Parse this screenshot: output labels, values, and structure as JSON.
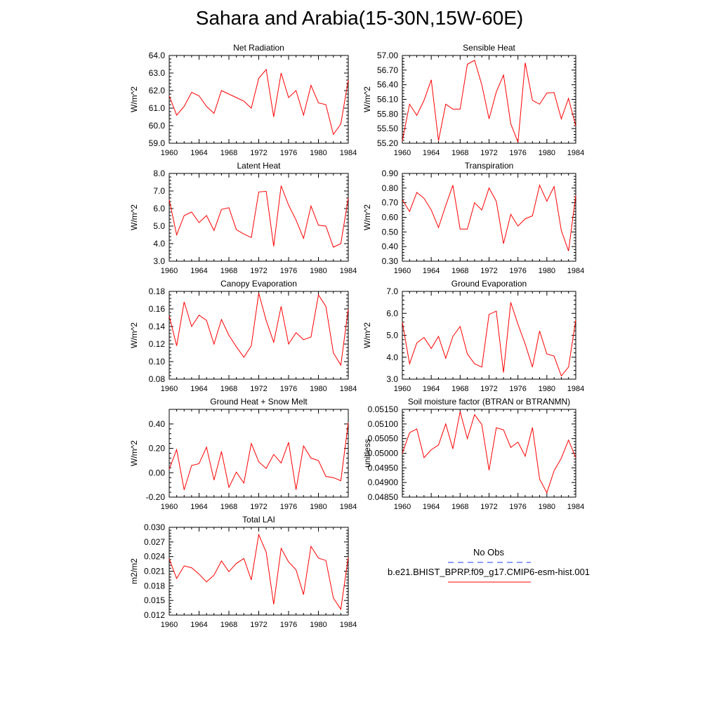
{
  "title": "Sahara and Arabia(15-30N,15W-60E)",
  "colors": {
    "model_line": "#ff0000",
    "obs_line": "#1e3cff",
    "axis": "#000000"
  },
  "legend": {
    "obs_label": "No Obs",
    "model_label": "b.e21.BHIST_BPRP.f09_g17.CMIP6-esm-hist.001"
  },
  "chart_data": [
    {
      "type": "line",
      "title": "Net Radiation",
      "ylabel": "W/m^2",
      "xticks": [
        "1960",
        "1964",
        "1968",
        "1972",
        "1976",
        "1980",
        "1984"
      ],
      "ylim": [
        59.0,
        64.0
      ],
      "yticks": [
        "59.0",
        "60.0",
        "61.0",
        "62.0",
        "63.0",
        "64.0"
      ],
      "x": [
        1960,
        1961,
        1962,
        1963,
        1964,
        1965,
        1966,
        1967,
        1968,
        1969,
        1970,
        1971,
        1972,
        1973,
        1974,
        1975,
        1976,
        1977,
        1978,
        1979,
        1980,
        1981,
        1982,
        1983,
        1984
      ],
      "series": [
        {
          "values": [
            61.7,
            60.6,
            61.1,
            61.9,
            61.7,
            61.1,
            60.7,
            62.0,
            61.8,
            61.6,
            61.4,
            61.0,
            62.7,
            63.2,
            60.5,
            63.0,
            61.6,
            62.0,
            60.6,
            62.3,
            61.3,
            61.2,
            59.5,
            60.1,
            62.6
          ]
        }
      ]
    },
    {
      "type": "line",
      "title": "Sensible Heat",
      "ylabel": "W/m^2",
      "xticks": [
        "1960",
        "1964",
        "1968",
        "1972",
        "1976",
        "1980",
        "1984"
      ],
      "ylim": [
        55.2,
        57.0
      ],
      "yticks": [
        "55.20",
        "55.50",
        "55.80",
        "56.10",
        "56.40",
        "56.70",
        "57.00"
      ],
      "x": [
        1960,
        1961,
        1962,
        1963,
        1964,
        1965,
        1966,
        1967,
        1968,
        1969,
        1970,
        1971,
        1972,
        1973,
        1974,
        1975,
        1976,
        1977,
        1978,
        1979,
        1980,
        1981,
        1982,
        1983,
        1984
      ],
      "series": [
        {
          "values": [
            55.25,
            56.0,
            55.77,
            56.08,
            56.5,
            55.25,
            56.0,
            55.9,
            55.9,
            56.82,
            56.9,
            56.4,
            55.7,
            56.25,
            56.6,
            55.6,
            55.22,
            56.85,
            56.08,
            56.0,
            56.23,
            56.24,
            55.7,
            56.12,
            55.55
          ]
        }
      ]
    },
    {
      "type": "line",
      "title": "Latent Heat",
      "ylabel": "W/m^2",
      "xticks": [
        "1960",
        "1964",
        "1968",
        "1972",
        "1976",
        "1980",
        "1984"
      ],
      "ylim": [
        3.0,
        8.0
      ],
      "yticks": [
        "3.0",
        "4.0",
        "5.0",
        "6.0",
        "7.0",
        "8.0"
      ],
      "x": [
        1960,
        1961,
        1962,
        1963,
        1964,
        1965,
        1966,
        1967,
        1968,
        1969,
        1970,
        1971,
        1972,
        1973,
        1974,
        1975,
        1976,
        1977,
        1978,
        1979,
        1980,
        1981,
        1982,
        1983,
        1984
      ],
      "series": [
        {
          "values": [
            6.5,
            4.5,
            5.6,
            5.8,
            5.2,
            5.6,
            4.75,
            5.95,
            6.05,
            4.8,
            4.55,
            4.35,
            6.95,
            6.98,
            3.85,
            7.3,
            6.2,
            5.35,
            4.3,
            6.15,
            5.05,
            5.0,
            3.8,
            4.0,
            6.6
          ]
        }
      ]
    },
    {
      "type": "line",
      "title": "Transpiration",
      "ylabel": "W/m^2",
      "xticks": [
        "1960",
        "1964",
        "1968",
        "1972",
        "1976",
        "1980",
        "1984"
      ],
      "ylim": [
        0.3,
        0.9
      ],
      "yticks": [
        "0.30",
        "0.40",
        "0.50",
        "0.60",
        "0.70",
        "0.80",
        "0.90"
      ],
      "x": [
        1960,
        1961,
        1962,
        1963,
        1964,
        1965,
        1966,
        1967,
        1968,
        1969,
        1970,
        1971,
        1972,
        1973,
        1974,
        1975,
        1976,
        1977,
        1978,
        1979,
        1980,
        1981,
        1982,
        1983,
        1984
      ],
      "series": [
        {
          "values": [
            0.72,
            0.64,
            0.77,
            0.73,
            0.65,
            0.53,
            0.68,
            0.82,
            0.52,
            0.52,
            0.7,
            0.65,
            0.8,
            0.71,
            0.42,
            0.62,
            0.54,
            0.59,
            0.61,
            0.82,
            0.71,
            0.81,
            0.51,
            0.37,
            0.75
          ]
        }
      ]
    },
    {
      "type": "line",
      "title": "Canopy Evaporation",
      "ylabel": "W/m^2",
      "xticks": [
        "1960",
        "1964",
        "1968",
        "1972",
        "1976",
        "1980",
        "1984"
      ],
      "ylim": [
        0.08,
        0.18
      ],
      "yticks": [
        "0.08",
        "0.10",
        "0.12",
        "0.14",
        "0.16",
        "0.18"
      ],
      "x": [
        1960,
        1961,
        1962,
        1963,
        1964,
        1965,
        1966,
        1967,
        1968,
        1969,
        1970,
        1971,
        1972,
        1973,
        1974,
        1975,
        1976,
        1977,
        1978,
        1979,
        1980,
        1981,
        1982,
        1983,
        1984
      ],
      "series": [
        {
          "values": [
            0.152,
            0.118,
            0.168,
            0.14,
            0.153,
            0.147,
            0.12,
            0.148,
            0.13,
            0.117,
            0.105,
            0.118,
            0.178,
            0.147,
            0.122,
            0.163,
            0.12,
            0.133,
            0.125,
            0.128,
            0.176,
            0.163,
            0.11,
            0.096,
            0.16
          ]
        }
      ]
    },
    {
      "type": "line",
      "title": "Ground Evaporation",
      "ylabel": "W/m^2",
      "xticks": [
        "1960",
        "1964",
        "1968",
        "1972",
        "1976",
        "1980",
        "1984"
      ],
      "ylim": [
        3.0,
        7.0
      ],
      "yticks": [
        "3.0",
        "4.0",
        "5.0",
        "6.0",
        "7.0"
      ],
      "x": [
        1960,
        1961,
        1962,
        1963,
        1964,
        1965,
        1966,
        1967,
        1968,
        1969,
        1970,
        1971,
        1972,
        1973,
        1974,
        1975,
        1976,
        1977,
        1978,
        1979,
        1980,
        1981,
        1982,
        1983,
        1984
      ],
      "series": [
        {
          "values": [
            5.6,
            3.7,
            4.65,
            4.9,
            4.4,
            4.95,
            3.95,
            4.95,
            5.4,
            4.15,
            3.7,
            3.55,
            5.95,
            6.1,
            3.3,
            6.5,
            5.5,
            4.6,
            3.55,
            5.2,
            4.15,
            4.05,
            3.15,
            3.55,
            5.7
          ]
        }
      ]
    },
    {
      "type": "line",
      "title": "Ground Heat + Snow Melt",
      "ylabel": "W/m^2",
      "xticks": [
        "1960",
        "1964",
        "1968",
        "1972",
        "1976",
        "1980",
        "1984"
      ],
      "ylim": [
        -0.2,
        0.52
      ],
      "yticks": [
        "-0.20",
        "0.00",
        "0.20",
        "0.40"
      ],
      "ytick_values": [
        -0.2,
        0.0,
        0.2,
        0.4
      ],
      "x": [
        1960,
        1961,
        1962,
        1963,
        1964,
        1965,
        1966,
        1967,
        1968,
        1969,
        1970,
        1971,
        1972,
        1973,
        1974,
        1975,
        1976,
        1977,
        1978,
        1979,
        1980,
        1981,
        1982,
        1983,
        1984
      ],
      "series": [
        {
          "values": [
            0.03,
            0.19,
            -0.14,
            0.06,
            0.075,
            0.21,
            -0.06,
            0.175,
            -0.12,
            0.005,
            -0.085,
            0.24,
            0.09,
            0.035,
            0.15,
            0.08,
            0.25,
            -0.14,
            0.22,
            0.12,
            0.1,
            -0.03,
            -0.04,
            -0.065,
            0.41
          ]
        }
      ]
    },
    {
      "type": "line",
      "title": "Soil moisture factor (BTRAN or BTRANMN)",
      "ylabel": "unitless",
      "xticks": [
        "1960",
        "1964",
        "1968",
        "1972",
        "1976",
        "1980",
        "1984"
      ],
      "ylim": [
        0.0485,
        0.0515
      ],
      "yticks": [
        "0.04850",
        "0.04900",
        "0.04950",
        "0.05000",
        "0.05050",
        "0.05100",
        "0.05150"
      ],
      "x": [
        1960,
        1961,
        1962,
        1963,
        1964,
        1965,
        1966,
        1967,
        1968,
        1969,
        1970,
        1971,
        1972,
        1973,
        1974,
        1975,
        1976,
        1977,
        1978,
        1979,
        1980,
        1981,
        1982,
        1983,
        1984
      ],
      "series": [
        {
          "values": [
            0.05,
            0.0507,
            0.05083,
            0.04985,
            0.05012,
            0.05028,
            0.051,
            0.05015,
            0.05142,
            0.0505,
            0.05132,
            0.05098,
            0.04942,
            0.05087,
            0.0508,
            0.0502,
            0.05038,
            0.0499,
            0.05088,
            0.04912,
            0.04865,
            0.0494,
            0.04983,
            0.05045,
            0.04985
          ]
        }
      ]
    },
    {
      "type": "line",
      "title": "Total LAI",
      "ylabel": "m2/m2",
      "xticks": [
        "1960",
        "1964",
        "1968",
        "1972",
        "1976",
        "1980",
        "1984"
      ],
      "ylim": [
        0.012,
        0.03
      ],
      "yticks": [
        "0.012",
        "0.015",
        "0.018",
        "0.021",
        "0.024",
        "0.027",
        "0.030"
      ],
      "x": [
        1960,
        1961,
        1962,
        1963,
        1964,
        1965,
        1966,
        1967,
        1968,
        1969,
        1970,
        1971,
        1972,
        1973,
        1974,
        1975,
        1976,
        1977,
        1978,
        1979,
        1980,
        1981,
        1982,
        1983,
        1984
      ],
      "series": [
        {
          "values": [
            0.0235,
            0.0195,
            0.0221,
            0.0217,
            0.0204,
            0.0188,
            0.0202,
            0.0231,
            0.0209,
            0.0226,
            0.0236,
            0.0192,
            0.0285,
            0.0249,
            0.0142,
            0.0257,
            0.0229,
            0.0213,
            0.0162,
            0.0261,
            0.0237,
            0.0232,
            0.0155,
            0.0132,
            0.0239
          ]
        }
      ]
    }
  ]
}
